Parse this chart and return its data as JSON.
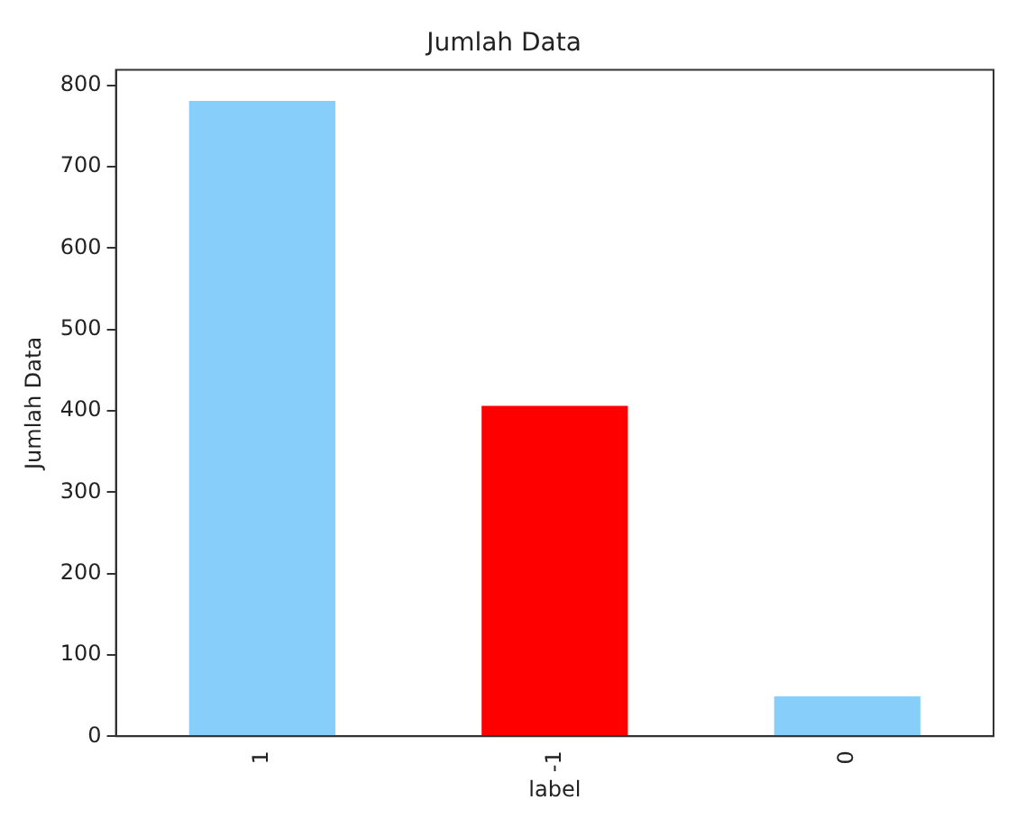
{
  "chart_data": {
    "type": "bar",
    "title": "Jumlah Data",
    "xlabel": "label",
    "ylabel": "Jumlah Data",
    "categories": [
      "1",
      "-1",
      "0"
    ],
    "values": [
      781,
      406,
      49
    ],
    "colors": [
      "#87cefa",
      "#ff0000",
      "#87cefa"
    ],
    "ylim": [
      0,
      819
    ],
    "yticks": [
      0,
      100,
      200,
      300,
      400,
      500,
      600,
      700,
      800
    ],
    "grid": false,
    "legend": false
  }
}
